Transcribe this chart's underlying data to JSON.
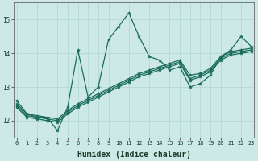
{
  "xlabel": "Humidex (Indice chaleur)",
  "bg_color": "#cce9e7",
  "line_color": "#1a6b5a",
  "grid_color": "#b0d5d0",
  "x_data": [
    0,
    1,
    2,
    3,
    4,
    5,
    6,
    7,
    8,
    9,
    10,
    11,
    12,
    13,
    14,
    15,
    16,
    17,
    18,
    19,
    20,
    21,
    22,
    23
  ],
  "lines": [
    [
      12.6,
      12.2,
      12.1,
      12.1,
      11.7,
      12.4,
      14.1,
      12.7,
      13.0,
      14.4,
      14.8,
      15.2,
      14.5,
      13.9,
      13.8,
      13.5,
      13.6,
      13.0,
      13.1,
      13.35,
      13.9,
      14.1,
      14.5,
      14.2
    ],
    [
      12.5,
      12.2,
      12.15,
      12.1,
      12.05,
      12.3,
      12.5,
      12.65,
      12.8,
      12.95,
      13.1,
      13.25,
      13.4,
      13.5,
      13.6,
      13.7,
      13.8,
      13.35,
      13.4,
      13.55,
      13.9,
      14.05,
      14.1,
      14.15
    ],
    [
      12.45,
      12.15,
      12.1,
      12.05,
      12.0,
      12.25,
      12.45,
      12.6,
      12.75,
      12.9,
      13.05,
      13.2,
      13.35,
      13.45,
      13.55,
      13.65,
      13.75,
      13.25,
      13.35,
      13.5,
      13.85,
      14.0,
      14.05,
      14.1
    ],
    [
      12.4,
      12.1,
      12.05,
      12.0,
      11.95,
      12.2,
      12.4,
      12.55,
      12.7,
      12.85,
      13.0,
      13.15,
      13.3,
      13.4,
      13.5,
      13.6,
      13.7,
      13.2,
      13.3,
      13.45,
      13.8,
      13.95,
      14.0,
      14.05
    ]
  ],
  "ylim": [
    11.5,
    15.5
  ],
  "yticks": [
    12,
    13,
    14,
    15
  ],
  "xticks": [
    0,
    1,
    2,
    3,
    4,
    5,
    6,
    7,
    8,
    9,
    10,
    11,
    12,
    13,
    14,
    15,
    16,
    17,
    18,
    19,
    20,
    21,
    22,
    23
  ],
  "xlim": [
    -0.3,
    23.3
  ],
  "figsize": [
    3.2,
    2.0
  ],
  "dpi": 100
}
